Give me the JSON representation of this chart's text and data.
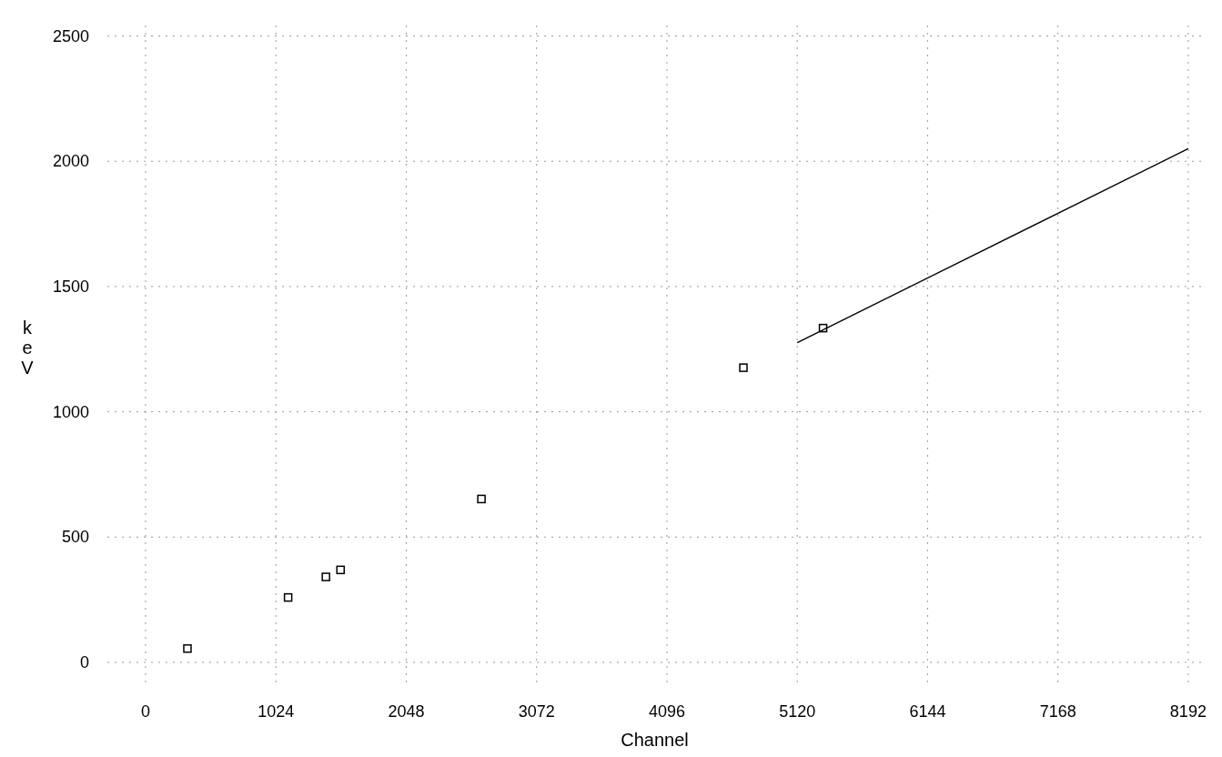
{
  "chart_data": {
    "type": "scatter",
    "xlabel": "Channel",
    "ylabel": "keV",
    "xlim": [
      -300,
      8300
    ],
    "ylim": [
      -80,
      2560
    ],
    "xticks": [
      0,
      1024,
      2048,
      3072,
      4096,
      5120,
      6144,
      7168,
      8192
    ],
    "yticks": [
      0,
      500,
      1000,
      1500,
      2000,
      2500
    ],
    "grid": true,
    "marker": "square",
    "series": [
      {
        "color": "#000000",
        "x": [
          329,
          1120,
          1417,
          1532,
          2639,
          4697,
          5323
        ],
        "values": [
          55,
          259,
          341,
          369,
          652,
          1176,
          1334
        ]
      },
      {
        "type": "line",
        "color": "#000000",
        "marker": "none",
        "x": [
          5120,
          8192
        ],
        "values": [
          1276,
          2050
        ]
      }
    ]
  }
}
